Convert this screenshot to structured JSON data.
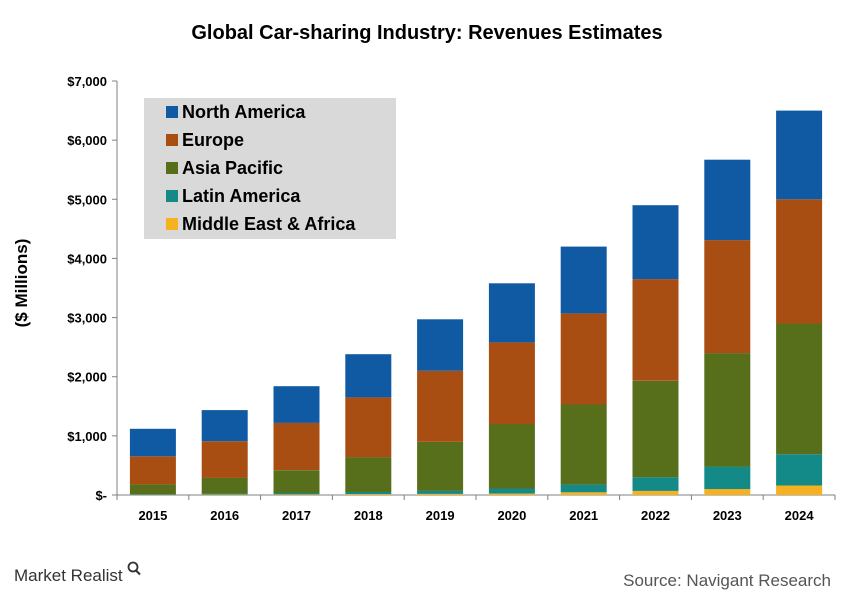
{
  "chart_data": {
    "type": "bar",
    "stacked": true,
    "title": "Global Car-sharing Industry: Revenues Estimates",
    "xlabel": "",
    "ylabel": "($ Millions)",
    "ylim": [
      0,
      7000
    ],
    "yticks": [
      0,
      1000,
      2000,
      3000,
      4000,
      5000,
      6000,
      7000
    ],
    "ytick_labels": [
      "$-",
      "$1,000",
      "$2,000",
      "$3,000",
      "$4,000",
      "$5,000",
      "$6,000",
      "$7,000"
    ],
    "categories": [
      "2015",
      "2016",
      "2017",
      "2018",
      "2019",
      "2020",
      "2021",
      "2022",
      "2023",
      "2024"
    ],
    "grid": false,
    "legend_position": "top-left",
    "series": [
      {
        "name": "Middle East & Africa",
        "color": "#F5B120",
        "values": [
          5,
          8,
          10,
          15,
          20,
          25,
          45,
          70,
          100,
          160
        ]
      },
      {
        "name": "Latin America",
        "color": "#138A88",
        "values": [
          10,
          15,
          25,
          35,
          50,
          85,
          130,
          230,
          380,
          530
        ]
      },
      {
        "name": "Asia Pacific",
        "color": "#576E1A",
        "values": [
          165,
          267,
          385,
          590,
          830,
          1090,
          1355,
          1630,
          1920,
          2210
        ]
      },
      {
        "name": "Europe",
        "color": "#A84E12",
        "values": [
          475,
          620,
          800,
          1010,
          1200,
          1380,
          1540,
          1720,
          1910,
          2100
        ]
      },
      {
        "name": "North America",
        "color": "#1059A3",
        "values": [
          465,
          525,
          620,
          730,
          870,
          1000,
          1130,
          1250,
          1360,
          1500
        ]
      }
    ],
    "legend_order": [
      "North America",
      "Europe",
      "Asia Pacific",
      "Latin America",
      "Middle East & Africa"
    ]
  },
  "footer": {
    "brand": "Market Realist",
    "source": "Source: Navigant Research"
  }
}
